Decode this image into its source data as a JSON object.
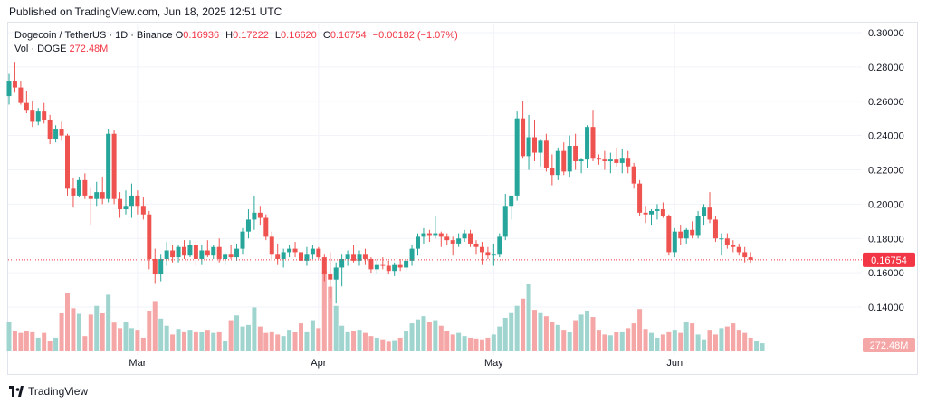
{
  "published": "Published on TradingView.com, Jun 18, 2025 12:51 UTC",
  "footer": {
    "brand": "TradingView",
    "logo_icon": "tradingview-logo-icon"
  },
  "legend": {
    "symbol": "Dogecoin / TetherUS · 1D · Binance",
    "open_label": "O",
    "open": "0.16936",
    "high_label": "H",
    "high": "0.17222",
    "low_label": "L",
    "low": "0.16620",
    "close_label": "C",
    "close": "0.16754",
    "change": "−0.00182 (−1.07%)",
    "volume_label": "Vol · DOGE",
    "volume": "272.48M"
  },
  "colors": {
    "up": "#26a69a",
    "down": "#ef5350",
    "vol_up": "#9fd4cf",
    "vol_down": "#f5a6a6",
    "price_line": "#f23645",
    "grid": "#f0f3fa",
    "text": "#131722"
  },
  "chart_data": {
    "type": "candlestick",
    "y_axis": {
      "side": "right",
      "ylim": [
        0.13,
        0.3
      ],
      "tick_labels": [
        "0.30000",
        "0.28000",
        "0.26000",
        "0.24000",
        "0.22000",
        "0.20000",
        "0.18000",
        "0.16000",
        "0.14000"
      ]
    },
    "x_axis": {
      "labels": [
        {
          "text": "Mar",
          "date": "2025-03-01"
        },
        {
          "text": "Apr",
          "date": "2025-04-01"
        },
        {
          "text": "May",
          "date": "2025-05-01"
        },
        {
          "text": "Jun",
          "date": "2025-06-01"
        }
      ]
    },
    "current_price": {
      "value": 0.16754,
      "label": "0.16754"
    },
    "current_volume": {
      "value": 272.48,
      "label": "272.48M"
    },
    "start_date": "2025-02-07",
    "ohlc": [
      [
        0.263,
        0.276,
        0.258,
        0.272
      ],
      [
        0.272,
        0.283,
        0.265,
        0.268
      ],
      [
        0.268,
        0.272,
        0.258,
        0.259
      ],
      [
        0.259,
        0.266,
        0.253,
        0.255
      ],
      [
        0.255,
        0.26,
        0.245,
        0.248
      ],
      [
        0.248,
        0.256,
        0.246,
        0.254
      ],
      [
        0.254,
        0.259,
        0.247,
        0.249
      ],
      [
        0.249,
        0.252,
        0.235,
        0.238
      ],
      [
        0.238,
        0.246,
        0.236,
        0.244
      ],
      [
        0.244,
        0.248,
        0.237,
        0.24
      ],
      [
        0.24,
        0.241,
        0.205,
        0.209
      ],
      [
        0.209,
        0.215,
        0.198,
        0.205
      ],
      [
        0.205,
        0.216,
        0.204,
        0.214
      ],
      [
        0.214,
        0.218,
        0.203,
        0.205
      ],
      [
        0.205,
        0.21,
        0.188,
        0.203
      ],
      [
        0.203,
        0.213,
        0.199,
        0.207
      ],
      [
        0.207,
        0.216,
        0.2,
        0.203
      ],
      [
        0.203,
        0.244,
        0.201,
        0.241
      ],
      [
        0.241,
        0.243,
        0.2,
        0.203
      ],
      [
        0.203,
        0.207,
        0.192,
        0.197
      ],
      [
        0.197,
        0.208,
        0.194,
        0.199
      ],
      [
        0.199,
        0.212,
        0.192,
        0.205
      ],
      [
        0.205,
        0.208,
        0.194,
        0.199
      ],
      [
        0.199,
        0.204,
        0.191,
        0.194
      ],
      [
        0.194,
        0.196,
        0.162,
        0.168
      ],
      [
        0.168,
        0.174,
        0.154,
        0.159
      ],
      [
        0.159,
        0.171,
        0.155,
        0.168
      ],
      [
        0.168,
        0.178,
        0.164,
        0.173
      ],
      [
        0.173,
        0.176,
        0.166,
        0.169
      ],
      [
        0.169,
        0.176,
        0.166,
        0.175
      ],
      [
        0.175,
        0.179,
        0.168,
        0.17
      ],
      [
        0.17,
        0.179,
        0.169,
        0.176
      ],
      [
        0.176,
        0.178,
        0.164,
        0.168
      ],
      [
        0.168,
        0.176,
        0.165,
        0.173
      ],
      [
        0.173,
        0.179,
        0.169,
        0.17
      ],
      [
        0.17,
        0.176,
        0.168,
        0.175
      ],
      [
        0.175,
        0.18,
        0.166,
        0.168
      ],
      [
        0.168,
        0.172,
        0.165,
        0.171
      ],
      [
        0.171,
        0.176,
        0.168,
        0.169
      ],
      [
        0.169,
        0.177,
        0.167,
        0.174
      ],
      [
        0.174,
        0.186,
        0.171,
        0.184
      ],
      [
        0.184,
        0.197,
        0.18,
        0.191
      ],
      [
        0.191,
        0.205,
        0.185,
        0.195
      ],
      [
        0.195,
        0.199,
        0.188,
        0.192
      ],
      [
        0.192,
        0.194,
        0.179,
        0.181
      ],
      [
        0.181,
        0.184,
        0.167,
        0.171
      ],
      [
        0.171,
        0.177,
        0.165,
        0.168
      ],
      [
        0.168,
        0.174,
        0.163,
        0.172
      ],
      [
        0.172,
        0.176,
        0.169,
        0.174
      ],
      [
        0.174,
        0.178,
        0.169,
        0.172
      ],
      [
        0.172,
        0.179,
        0.166,
        0.167
      ],
      [
        0.167,
        0.175,
        0.164,
        0.171
      ],
      [
        0.171,
        0.176,
        0.168,
        0.174
      ],
      [
        0.174,
        0.175,
        0.168,
        0.169
      ],
      [
        0.169,
        0.171,
        0.155,
        0.159
      ],
      [
        0.159,
        0.172,
        0.145,
        0.156
      ],
      [
        0.156,
        0.166,
        0.142,
        0.163
      ],
      [
        0.163,
        0.171,
        0.152,
        0.168
      ],
      [
        0.168,
        0.173,
        0.164,
        0.171
      ],
      [
        0.171,
        0.176,
        0.166,
        0.167
      ],
      [
        0.167,
        0.173,
        0.164,
        0.171
      ],
      [
        0.171,
        0.174,
        0.165,
        0.168
      ],
      [
        0.168,
        0.169,
        0.16,
        0.162
      ],
      [
        0.162,
        0.168,
        0.159,
        0.165
      ],
      [
        0.165,
        0.169,
        0.162,
        0.164
      ],
      [
        0.164,
        0.167,
        0.159,
        0.161
      ],
      [
        0.161,
        0.166,
        0.158,
        0.165
      ],
      [
        0.165,
        0.168,
        0.161,
        0.163
      ],
      [
        0.163,
        0.168,
        0.161,
        0.167
      ],
      [
        0.167,
        0.176,
        0.164,
        0.174
      ],
      [
        0.174,
        0.183,
        0.17,
        0.181
      ],
      [
        0.181,
        0.186,
        0.177,
        0.183
      ],
      [
        0.183,
        0.185,
        0.178,
        0.182
      ],
      [
        0.182,
        0.193,
        0.18,
        0.183
      ],
      [
        0.183,
        0.184,
        0.175,
        0.181
      ],
      [
        0.181,
        0.183,
        0.176,
        0.179
      ],
      [
        0.179,
        0.181,
        0.17,
        0.177
      ],
      [
        0.177,
        0.183,
        0.175,
        0.18
      ],
      [
        0.18,
        0.185,
        0.178,
        0.183
      ],
      [
        0.183,
        0.185,
        0.175,
        0.177
      ],
      [
        0.177,
        0.179,
        0.171,
        0.175
      ],
      [
        0.175,
        0.178,
        0.165,
        0.172
      ],
      [
        0.172,
        0.175,
        0.168,
        0.17
      ],
      [
        0.17,
        0.177,
        0.164,
        0.171
      ],
      [
        0.171,
        0.183,
        0.169,
        0.181
      ],
      [
        0.181,
        0.206,
        0.179,
        0.199
      ],
      [
        0.199,
        0.205,
        0.191,
        0.205
      ],
      [
        0.205,
        0.254,
        0.202,
        0.25
      ],
      [
        0.25,
        0.26,
        0.227,
        0.228
      ],
      [
        0.228,
        0.252,
        0.22,
        0.239
      ],
      [
        0.239,
        0.249,
        0.225,
        0.23
      ],
      [
        0.23,
        0.238,
        0.222,
        0.237
      ],
      [
        0.237,
        0.241,
        0.219,
        0.221
      ],
      [
        0.221,
        0.229,
        0.211,
        0.217
      ],
      [
        0.217,
        0.233,
        0.214,
        0.231
      ],
      [
        0.231,
        0.236,
        0.217,
        0.219
      ],
      [
        0.219,
        0.24,
        0.216,
        0.234
      ],
      [
        0.234,
        0.241,
        0.22,
        0.225
      ],
      [
        0.225,
        0.227,
        0.218,
        0.226
      ],
      [
        0.226,
        0.246,
        0.221,
        0.245
      ],
      [
        0.245,
        0.255,
        0.225,
        0.227
      ],
      [
        0.227,
        0.229,
        0.223,
        0.226
      ],
      [
        0.226,
        0.231,
        0.22,
        0.225
      ],
      [
        0.225,
        0.23,
        0.218,
        0.226
      ],
      [
        0.226,
        0.233,
        0.222,
        0.224
      ],
      [
        0.224,
        0.232,
        0.218,
        0.227
      ],
      [
        0.227,
        0.231,
        0.218,
        0.222
      ],
      [
        0.222,
        0.224,
        0.209,
        0.212
      ],
      [
        0.212,
        0.214,
        0.193,
        0.195
      ],
      [
        0.195,
        0.199,
        0.189,
        0.194
      ],
      [
        0.194,
        0.197,
        0.188,
        0.196
      ],
      [
        0.196,
        0.2,
        0.191,
        0.197
      ],
      [
        0.197,
        0.201,
        0.192,
        0.193
      ],
      [
        0.193,
        0.194,
        0.17,
        0.172
      ],
      [
        0.172,
        0.186,
        0.169,
        0.184
      ],
      [
        0.184,
        0.188,
        0.176,
        0.18
      ],
      [
        0.18,
        0.186,
        0.177,
        0.185
      ],
      [
        0.185,
        0.19,
        0.18,
        0.182
      ],
      [
        0.182,
        0.196,
        0.18,
        0.193
      ],
      [
        0.193,
        0.2,
        0.188,
        0.198
      ],
      [
        0.198,
        0.207,
        0.189,
        0.191
      ],
      [
        0.191,
        0.193,
        0.178,
        0.18
      ],
      [
        0.18,
        0.183,
        0.17,
        0.18
      ],
      [
        0.18,
        0.183,
        0.174,
        0.176
      ],
      [
        0.176,
        0.179,
        0.172,
        0.175
      ],
      [
        0.175,
        0.177,
        0.17,
        0.172
      ],
      [
        0.172,
        0.175,
        0.166,
        0.169
      ],
      [
        0.169,
        0.172,
        0.166,
        0.1675
      ]
    ],
    "volume": [
      36,
      25,
      22,
      25,
      24,
      16,
      22,
      12,
      16,
      47,
      72,
      53,
      46,
      18,
      45,
      56,
      47,
      70,
      35,
      28,
      36,
      28,
      26,
      16,
      50,
      62,
      40,
      31,
      20,
      27,
      24,
      26,
      24,
      23,
      26,
      22,
      24,
      12,
      38,
      44,
      30,
      32,
      54,
      30,
      22,
      24,
      20,
      18,
      26,
      23,
      34,
      24,
      38,
      28,
      100,
      80,
      56,
      31,
      24,
      25,
      26,
      22,
      18,
      16,
      14,
      11,
      13,
      16,
      25,
      34,
      39,
      43,
      36,
      38,
      31,
      25,
      20,
      22,
      18,
      16,
      15,
      14,
      16,
      20,
      30,
      41,
      48,
      56,
      65,
      84,
      51,
      48,
      43,
      36,
      32,
      26,
      23,
      38,
      45,
      50,
      42,
      26,
      20,
      19,
      23,
      24,
      28,
      34,
      52,
      27,
      22,
      16,
      20,
      24,
      26,
      22,
      36,
      34,
      20,
      14,
      26,
      20,
      28,
      30,
      34,
      26,
      22,
      16,
      12,
      9
    ],
    "volume_scale_max": 100
  }
}
